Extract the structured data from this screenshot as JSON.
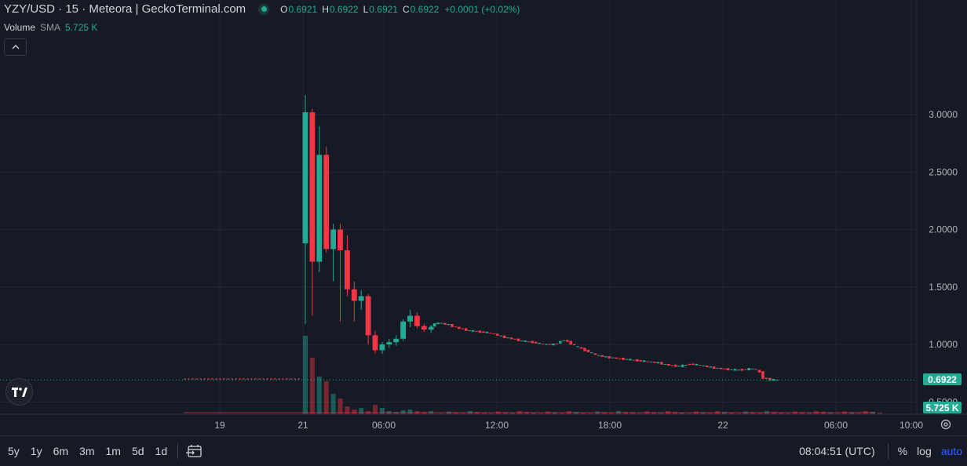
{
  "header": {
    "title": "YZY/USD · 15 · Meteora | GeckoTerminal.com",
    "ohlc": [
      {
        "k": "O",
        "v": "0.6921"
      },
      {
        "k": "H",
        "v": "0.6922"
      },
      {
        "k": "L",
        "v": "0.6921"
      },
      {
        "k": "C",
        "v": "0.6922"
      }
    ],
    "change": "+0.0001 (+0.02%)"
  },
  "volume_legend": {
    "label": "Volume",
    "sma": "SMA",
    "value": "5.725 K"
  },
  "price_tags": {
    "last_price": "0.6922",
    "last_volume": "5.725 K"
  },
  "colors": {
    "up": "#22ab94",
    "down": "#f23645",
    "background": "#161a25",
    "grid": "#232733",
    "text": "#b2b5be",
    "accent": "#2962ff"
  },
  "bottom_bar": {
    "ranges": [
      "5y",
      "1y",
      "6m",
      "3m",
      "1m",
      "5d",
      "1d"
    ],
    "clock": "08:04:51 (UTC)",
    "percent": "%",
    "log": "log",
    "auto": "auto"
  },
  "icons": {
    "status": "status-dot-icon",
    "collapse": "chevron-up-icon",
    "calendar": "calendar-range-icon",
    "settings": "gear-icon",
    "logo": "tradingview-logo"
  },
  "chart_data": {
    "type": "candlestick",
    "title": "YZY/USD · 15 · Meteora | GeckoTerminal.com",
    "xlabel": "",
    "ylabel": "",
    "y_ticks": [
      "0.5000",
      "1.0000",
      "1.5000",
      "2.0000",
      "2.5000",
      "3.0000"
    ],
    "ylim": [
      0.0,
      3.5
    ],
    "x_ticks": [
      "19",
      "21",
      "06:00",
      "12:00",
      "18:00",
      "22",
      "06:00",
      "10:00"
    ],
    "grid": true,
    "last_price": 0.6922,
    "candles": [
      [
        1.88,
        3.17,
        1.18,
        3.02
      ],
      [
        3.02,
        3.05,
        1.25,
        1.72
      ],
      [
        1.72,
        2.9,
        1.63,
        2.65
      ],
      [
        2.65,
        2.72,
        1.8,
        1.83
      ],
      [
        1.83,
        2.05,
        1.55,
        2.0
      ],
      [
        2.0,
        2.05,
        1.2,
        1.82
      ],
      [
        1.82,
        1.95,
        1.42,
        1.48
      ],
      [
        1.48,
        1.55,
        1.2,
        1.38
      ],
      [
        1.38,
        1.47,
        1.3,
        1.42
      ],
      [
        1.42,
        1.44,
        1.0,
        1.08
      ],
      [
        1.08,
        1.12,
        0.92,
        0.95
      ],
      [
        0.95,
        1.02,
        0.92,
        1.0
      ],
      [
        1.0,
        1.05,
        0.97,
        1.02
      ],
      [
        1.02,
        1.08,
        0.99,
        1.05
      ],
      [
        1.05,
        1.22,
        1.03,
        1.2
      ],
      [
        1.2,
        1.3,
        1.15,
        1.25
      ],
      [
        1.25,
        1.28,
        1.14,
        1.16
      ],
      [
        1.16,
        1.18,
        1.11,
        1.13
      ],
      [
        1.13,
        1.17,
        1.1,
        1.15
      ]
    ],
    "trend": [
      [
        18.0,
        1.15
      ],
      [
        19.5,
        1.19
      ],
      [
        21.0,
        1.17
      ],
      [
        22.5,
        1.14
      ],
      [
        24.0,
        1.12
      ],
      [
        25.5,
        1.11
      ],
      [
        27.0,
        1.1
      ],
      [
        28.5,
        1.07
      ],
      [
        30.0,
        1.05
      ],
      [
        31.5,
        1.03
      ],
      [
        33.0,
        1.02
      ],
      [
        34.5,
        1.0
      ],
      [
        36.0,
        1.0
      ],
      [
        37.5,
        1.04
      ],
      [
        39.0,
        0.99
      ],
      [
        40.5,
        0.95
      ],
      [
        42.0,
        0.91
      ],
      [
        43.5,
        0.89
      ],
      [
        45.0,
        0.88
      ],
      [
        46.5,
        0.87
      ],
      [
        48.0,
        0.86
      ],
      [
        49.5,
        0.85
      ],
      [
        51.0,
        0.84
      ],
      [
        52.5,
        0.82
      ],
      [
        54.0,
        0.81
      ],
      [
        55.5,
        0.83
      ],
      [
        57.0,
        0.82
      ],
      [
        58.5,
        0.8
      ],
      [
        60.0,
        0.79
      ],
      [
        61.5,
        0.78
      ],
      [
        63.0,
        0.78
      ],
      [
        64.5,
        0.79
      ],
      [
        65.5,
        0.76
      ],
      [
        66.0,
        0.71
      ],
      [
        67.0,
        0.6922
      ],
      [
        68.0,
        0.6922
      ]
    ],
    "pre_launch_line": {
      "from_tick": "19",
      "to_tick": "21"
    },
    "volume_bars_relative": [
      1.0,
      0.72,
      0.48,
      0.42,
      0.26,
      0.2,
      0.1,
      0.06,
      0.08,
      0.04,
      0.12,
      0.08,
      0.04,
      0.03,
      0.05,
      0.06,
      0.04,
      0.03,
      0.04
    ]
  }
}
